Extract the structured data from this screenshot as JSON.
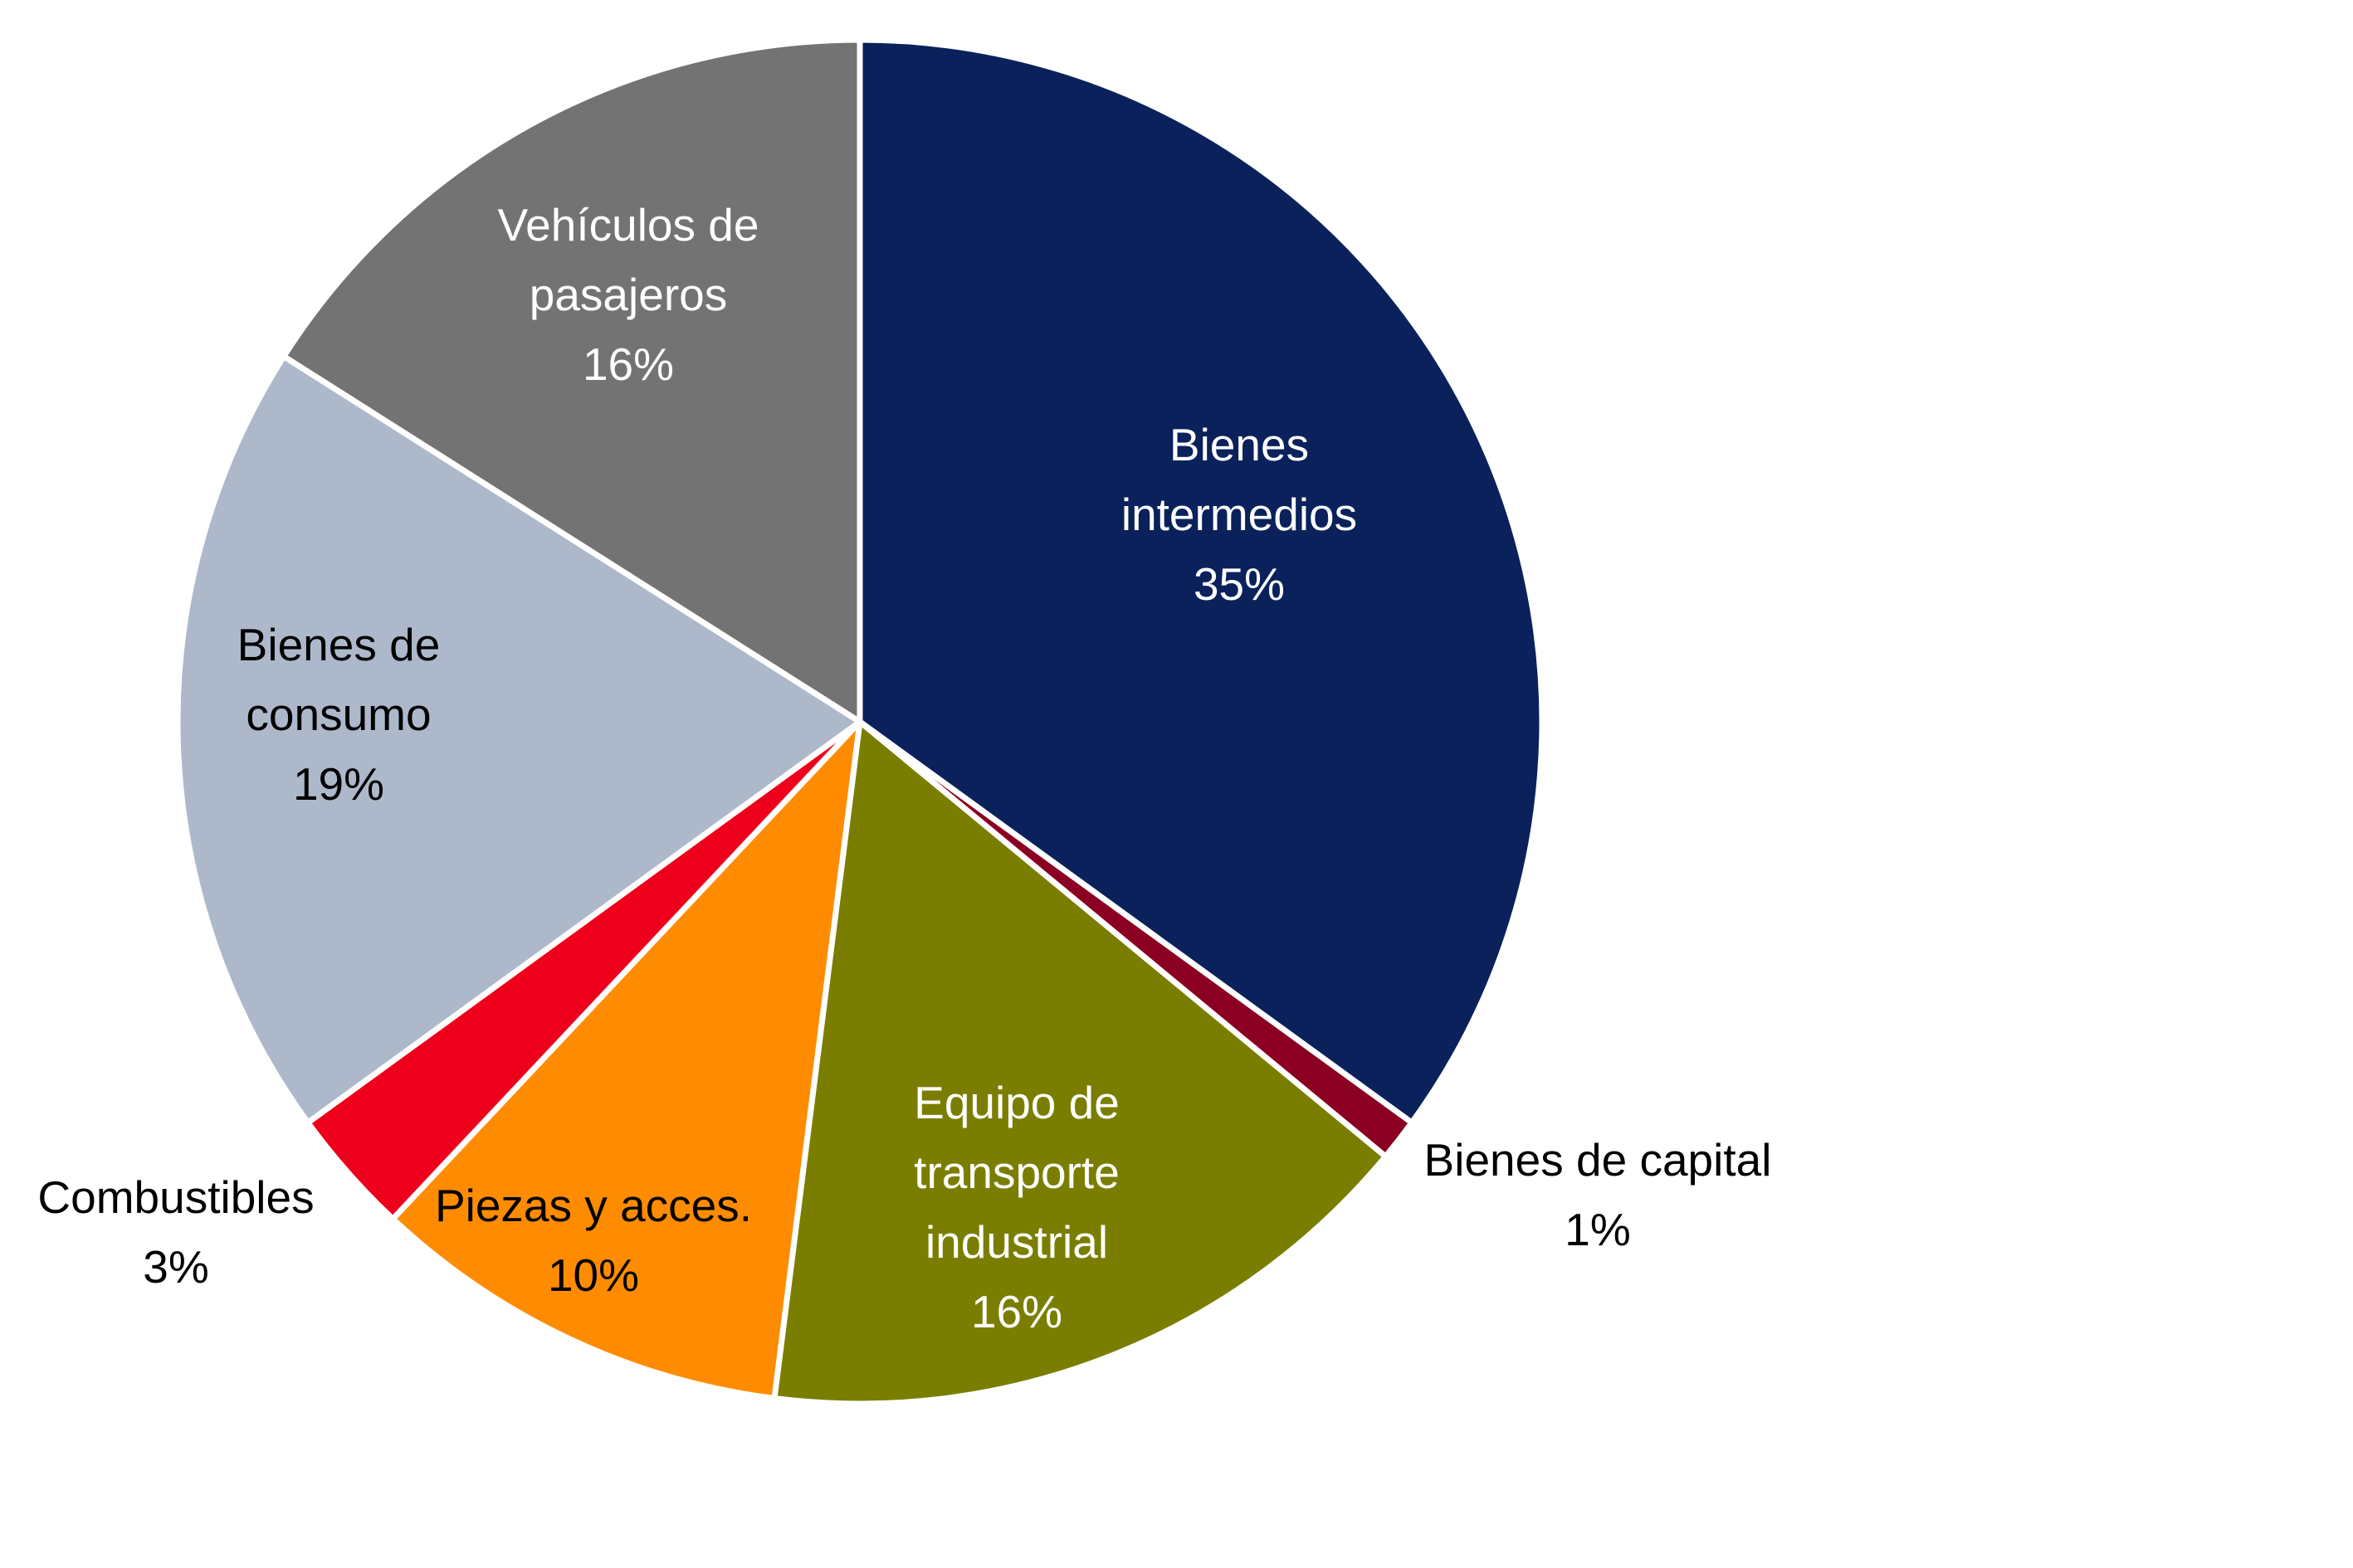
{
  "chart_data": {
    "type": "pie",
    "categories": [
      "Bienes intermedios",
      "Bienes de capital",
      "Equipo de transporte industrial",
      "Piezas y acces.",
      "Combustibles",
      "Bienes de consumo",
      "Vehículos de pasajeros"
    ],
    "values": [
      35,
      1,
      16,
      10,
      3,
      19,
      16
    ],
    "value_labels": [
      "35%",
      "1%",
      "16%",
      "10%",
      "3%",
      "19%",
      "16%"
    ],
    "label_lines": [
      [
        "Bienes",
        "intermedios"
      ],
      [
        "Bienes de capital"
      ],
      [
        "Equipo de",
        "transporte",
        "industrial"
      ],
      [
        "Piezas y acces."
      ],
      [
        "Combustibles"
      ],
      [
        "Bienes de",
        "consumo"
      ],
      [
        "Vehículos de",
        "pasajeros"
      ]
    ],
    "colors": [
      "#0a215b",
      "#8b0022",
      "#7a7e00",
      "#ff8c00",
      "#ee001c",
      "#adb9cb",
      "#737373"
    ],
    "label_colors": [
      "#ffffff",
      "#000000",
      "#ffffff",
      "#000000",
      "#000000",
      "#000000",
      "#ffffff"
    ],
    "label_placement": [
      "inside",
      "outside",
      "inside",
      "inside",
      "outside",
      "inside",
      "inside"
    ],
    "start_angle": "12 o'clock",
    "direction": "clockwise",
    "legend": "none"
  }
}
